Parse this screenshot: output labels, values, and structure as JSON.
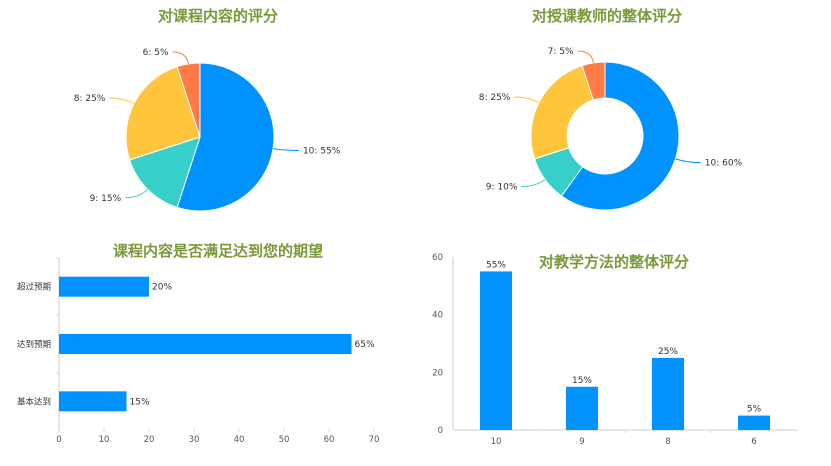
{
  "theme": {
    "title_color": "#7a9a3a",
    "axis_color": "#cccccc",
    "tick_color": "#dddddd"
  },
  "chart_data": [
    {
      "id": "course-rating",
      "type": "pie",
      "title": "对课程内容的评分",
      "slices": [
        {
          "label": "10",
          "value": 55,
          "display": "10: 55%",
          "color": "#0092ff"
        },
        {
          "label": "9",
          "value": 15,
          "display": "9: 15%",
          "color": "#36cfc9"
        },
        {
          "label": "8",
          "value": 25,
          "display": "8: 25%",
          "color": "#ffc53d"
        },
        {
          "label": "6",
          "value": 5,
          "display": "6: 5%",
          "color": "#ff7a45"
        }
      ]
    },
    {
      "id": "teacher-rating",
      "type": "donut",
      "title": "对授课教师的整体评分",
      "slices": [
        {
          "label": "10",
          "value": 60,
          "display": "10: 60%",
          "color": "#0092ff"
        },
        {
          "label": "9",
          "value": 10,
          "display": "9: 10%",
          "color": "#36cfc9"
        },
        {
          "label": "8",
          "value": 25,
          "display": "8: 25%",
          "color": "#ffc53d"
        },
        {
          "label": "7",
          "value": 5,
          "display": "7: 5%",
          "color": "#ff7a45"
        }
      ]
    },
    {
      "id": "expectation",
      "type": "bar",
      "orientation": "horizontal",
      "title": "课程内容是否满足达到您的期望",
      "categories": [
        "超过预期",
        "达到预期",
        "基本达到"
      ],
      "values": [
        20,
        65,
        15
      ],
      "value_labels": [
        "20%",
        "65%",
        "15%"
      ],
      "xlim": [
        0,
        70
      ],
      "xticks": [
        "0",
        "10",
        "20",
        "30",
        "40",
        "50",
        "60",
        "70"
      ],
      "color": "#0092ff"
    },
    {
      "id": "teaching-method",
      "type": "bar",
      "orientation": "vertical",
      "title": "对教学方法的整体评分",
      "categories": [
        "10",
        "9",
        "8",
        "6"
      ],
      "values": [
        55,
        15,
        25,
        5
      ],
      "value_labels": [
        "55%",
        "15%",
        "25%",
        "5%"
      ],
      "ylim": [
        0,
        60
      ],
      "yticks": [
        "0",
        "20",
        "40",
        "60"
      ],
      "color": "#0092ff"
    }
  ]
}
